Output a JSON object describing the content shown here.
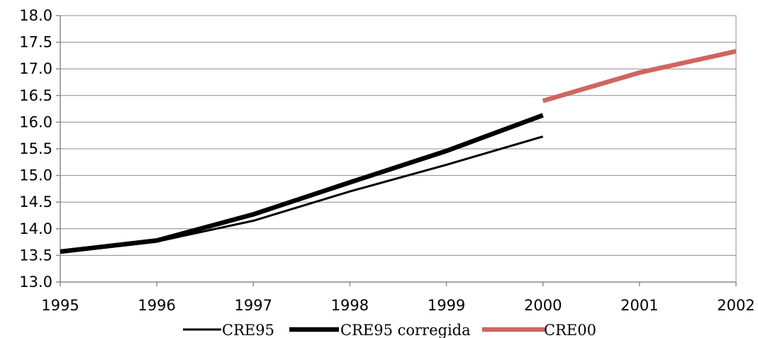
{
  "chart_data": {
    "type": "line",
    "title": "",
    "xlabel": "",
    "ylabel": "",
    "x": [
      1995,
      1996,
      1997,
      1998,
      1999,
      2000,
      2001,
      2002
    ],
    "x_tick_labels": [
      "1995",
      "1996",
      "1997",
      "1998",
      "1999",
      "2000",
      "2001",
      "2002"
    ],
    "xlim": [
      1995,
      2002
    ],
    "ylim": [
      13.0,
      18.0
    ],
    "y_tick_labels": [
      "13.0",
      "13.5",
      "14.0",
      "14.5",
      "15.0",
      "15.5",
      "16.0",
      "16.5",
      "17.0",
      "17.5",
      "18.0"
    ],
    "y_ticks": [
      13.0,
      13.5,
      14.0,
      14.5,
      15.0,
      15.5,
      16.0,
      16.5,
      17.0,
      17.5,
      18.0
    ],
    "grid": "horizontal",
    "legend_position": "bottom",
    "series": [
      {
        "name": "CRE95",
        "color": "#000000",
        "style": "thin",
        "points": [
          [
            1995,
            13.57
          ],
          [
            1996,
            13.76
          ],
          [
            1997,
            14.15
          ],
          [
            1998,
            14.7
          ],
          [
            1999,
            15.2
          ],
          [
            2000,
            15.73
          ]
        ]
      },
      {
        "name": "CRE95 corregida",
        "color": "#000000",
        "style": "thick",
        "points": [
          [
            1995,
            13.57
          ],
          [
            1996,
            13.78
          ],
          [
            1997,
            14.27
          ],
          [
            1998,
            14.87
          ],
          [
            1999,
            15.46
          ],
          [
            2000,
            16.13
          ]
        ]
      },
      {
        "name": "CRE00",
        "color": "#d0655f",
        "style": "thick",
        "points": [
          [
            2000,
            16.4
          ],
          [
            2001,
            16.93
          ],
          [
            2002,
            17.33
          ]
        ]
      }
    ]
  }
}
